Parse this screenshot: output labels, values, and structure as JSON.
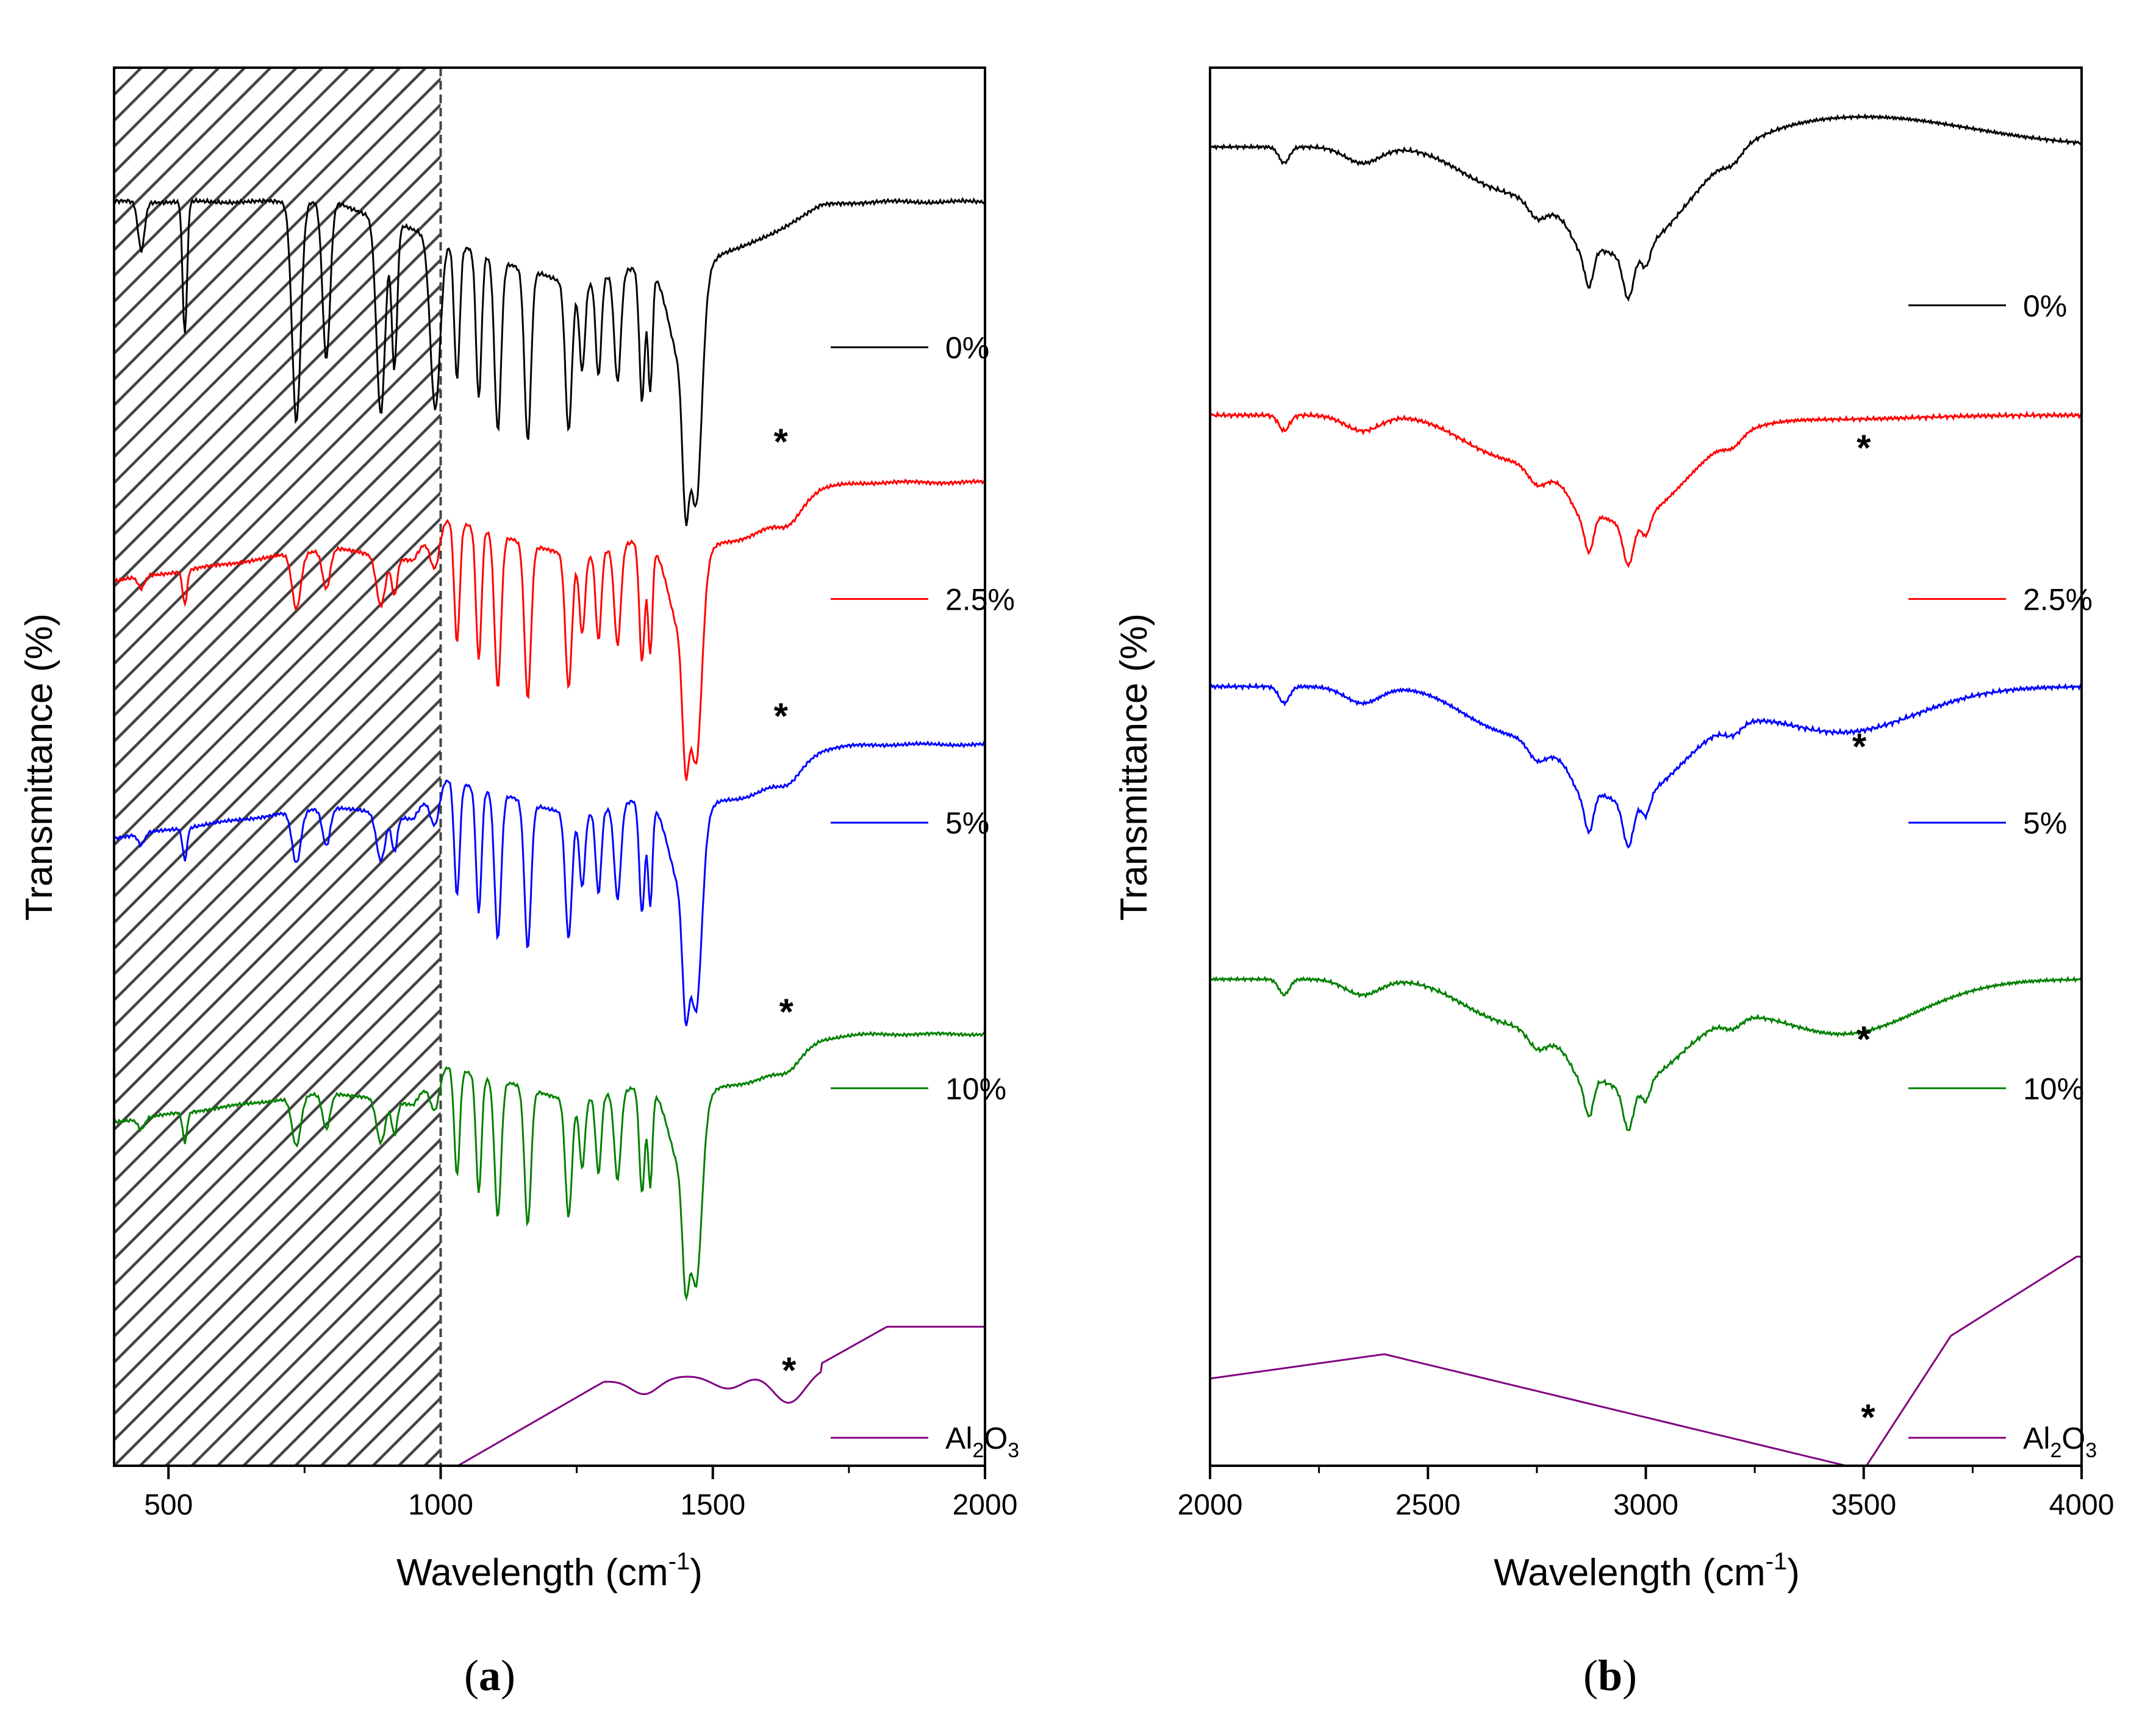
{
  "chart_data": [
    {
      "type": "line",
      "panel_label": "a",
      "xlabel": "Wavelength (cm",
      "xlabel_sup": "-1",
      "xlabel_close": ")",
      "ylabel": "Transmittance (%)",
      "xlim": [
        400,
        2000
      ],
      "xticks": [
        500,
        1000,
        1500,
        2000
      ],
      "shaded_region": [
        400,
        1000
      ],
      "series": [
        {
          "name": "0%",
          "color": "#000000",
          "legend_y": 0.8,
          "star_x": null
        },
        {
          "name": "2.5%",
          "color": "#ff0000",
          "legend_y": 0.62,
          "star_x": 1625
        },
        {
          "name": "5%",
          "color": "#0000ff",
          "legend_y": 0.46,
          "star_x": 1625
        },
        {
          "name": "10%",
          "color": "#008000",
          "legend_y": 0.27,
          "star_x": 1635
        },
        {
          "name": "Al2O3",
          "label_main": "Al",
          "label_sub1": "2",
          "label_mid": "O",
          "label_sub2": "3",
          "color": "#800080",
          "legend_y": 0.02,
          "star_x": 1640
        }
      ],
      "star_label": "*"
    },
    {
      "type": "line",
      "panel_label": "b",
      "xlabel": "Wavelength (cm",
      "xlabel_sup": "-1",
      "xlabel_close": ")",
      "ylabel": "Transmittance (%)",
      "xlim": [
        2000,
        4000
      ],
      "xticks": [
        2000,
        2500,
        3000,
        3500,
        4000
      ],
      "series": [
        {
          "name": "0%",
          "color": "#000000",
          "legend_y": 0.83,
          "star_x": null
        },
        {
          "name": "2.5%",
          "color": "#ff0000",
          "legend_y": 0.62,
          "star_x": 3500
        },
        {
          "name": "5%",
          "color": "#0000ff",
          "legend_y": 0.46,
          "star_x": 3490
        },
        {
          "name": "10%",
          "color": "#008000",
          "legend_y": 0.27,
          "star_x": 3500
        },
        {
          "name": "Al2O3",
          "label_main": "Al",
          "label_sub1": "2",
          "label_mid": "O",
          "label_sub2": "3",
          "color": "#800080",
          "legend_y": 0.02,
          "star_x": 3510
        }
      ],
      "star_label": "*"
    }
  ]
}
